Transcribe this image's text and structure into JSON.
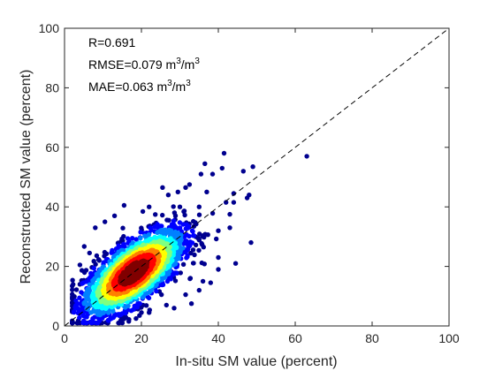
{
  "chart_data": {
    "type": "scatter",
    "title": "",
    "xlabel": "In-situ SM value (percent)",
    "ylabel": "Reconstructed SM value (percent)",
    "xlim": [
      0,
      100
    ],
    "ylim": [
      0,
      100
    ],
    "xticks": [
      "0",
      "20",
      "40",
      "60",
      "80",
      "100"
    ],
    "yticks": [
      "0",
      "20",
      "40",
      "60",
      "80",
      "100"
    ],
    "grid": false,
    "box": true,
    "reference_line": {
      "name": "1:1 line",
      "style": "dashed",
      "color": "#000000",
      "x": [
        0,
        100
      ],
      "y": [
        0,
        100
      ]
    },
    "annotations": {
      "r": "R=0.691",
      "rmse": {
        "prefix": "RMSE=0.079 m",
        "sup1": "3",
        "mid": "/m",
        "sup2": "3"
      },
      "mae": {
        "prefix": "MAE=0.063 m",
        "sup1": "3",
        "mid": "/m",
        "sup2": "3"
      }
    },
    "density_colormap": "jet",
    "density_colors": [
      "#00008f",
      "#0000ff",
      "#0080ff",
      "#00ffff",
      "#80ff80",
      "#ffff00",
      "#ff8000",
      "#ff0000",
      "#800000"
    ],
    "cloud": {
      "center": [
        18.0,
        18.0
      ],
      "count": 2600,
      "r": 0.691
    },
    "points": [
      [
        63.0,
        57.0
      ],
      [
        49.0,
        53.5
      ],
      [
        46.5,
        52.0
      ],
      [
        41.5,
        58.0
      ],
      [
        41.0,
        53.0
      ],
      [
        38.5,
        51.0
      ],
      [
        35.5,
        51.0
      ],
      [
        36.5,
        54.5
      ],
      [
        32.5,
        47.5
      ],
      [
        31.5,
        46.5
      ],
      [
        25.5,
        46.5
      ],
      [
        29.5,
        45.0
      ],
      [
        47.5,
        43.0
      ],
      [
        48.0,
        44.0
      ],
      [
        44.0,
        44.5
      ],
      [
        44.0,
        41.5
      ],
      [
        43.0,
        37.5
      ],
      [
        42.0,
        41.5
      ],
      [
        43.0,
        33.0
      ],
      [
        40.0,
        32.0
      ],
      [
        48.5,
        28.0
      ],
      [
        44.5,
        21.0
      ],
      [
        40.0,
        23.0
      ],
      [
        38.0,
        14.5
      ],
      [
        40.0,
        19.0
      ],
      [
        35.0,
        12.0
      ],
      [
        31.5,
        10.5
      ],
      [
        36.0,
        15.0
      ],
      [
        33.0,
        7.5
      ],
      [
        28.5,
        6.0
      ],
      [
        26.5,
        7.0
      ],
      [
        22.0,
        4.5
      ],
      [
        20.0,
        4.5
      ],
      [
        19.5,
        3.5
      ],
      [
        16.0,
        4.5
      ],
      [
        9.0,
        12.0
      ],
      [
        3.0,
        7.5
      ],
      [
        8.0,
        33.0
      ],
      [
        10.5,
        35.0
      ],
      [
        13.0,
        37.0
      ],
      [
        15.5,
        40.5
      ],
      [
        6.5,
        24.5
      ],
      [
        4.0,
        20.5
      ],
      [
        6.0,
        15.5
      ],
      [
        4.0,
        14.0
      ],
      [
        22.0,
        40.0
      ],
      [
        27.0,
        44.0
      ],
      [
        30.0,
        40.0
      ],
      [
        35.0,
        40.0
      ],
      [
        37.0,
        45.0
      ]
    ]
  }
}
